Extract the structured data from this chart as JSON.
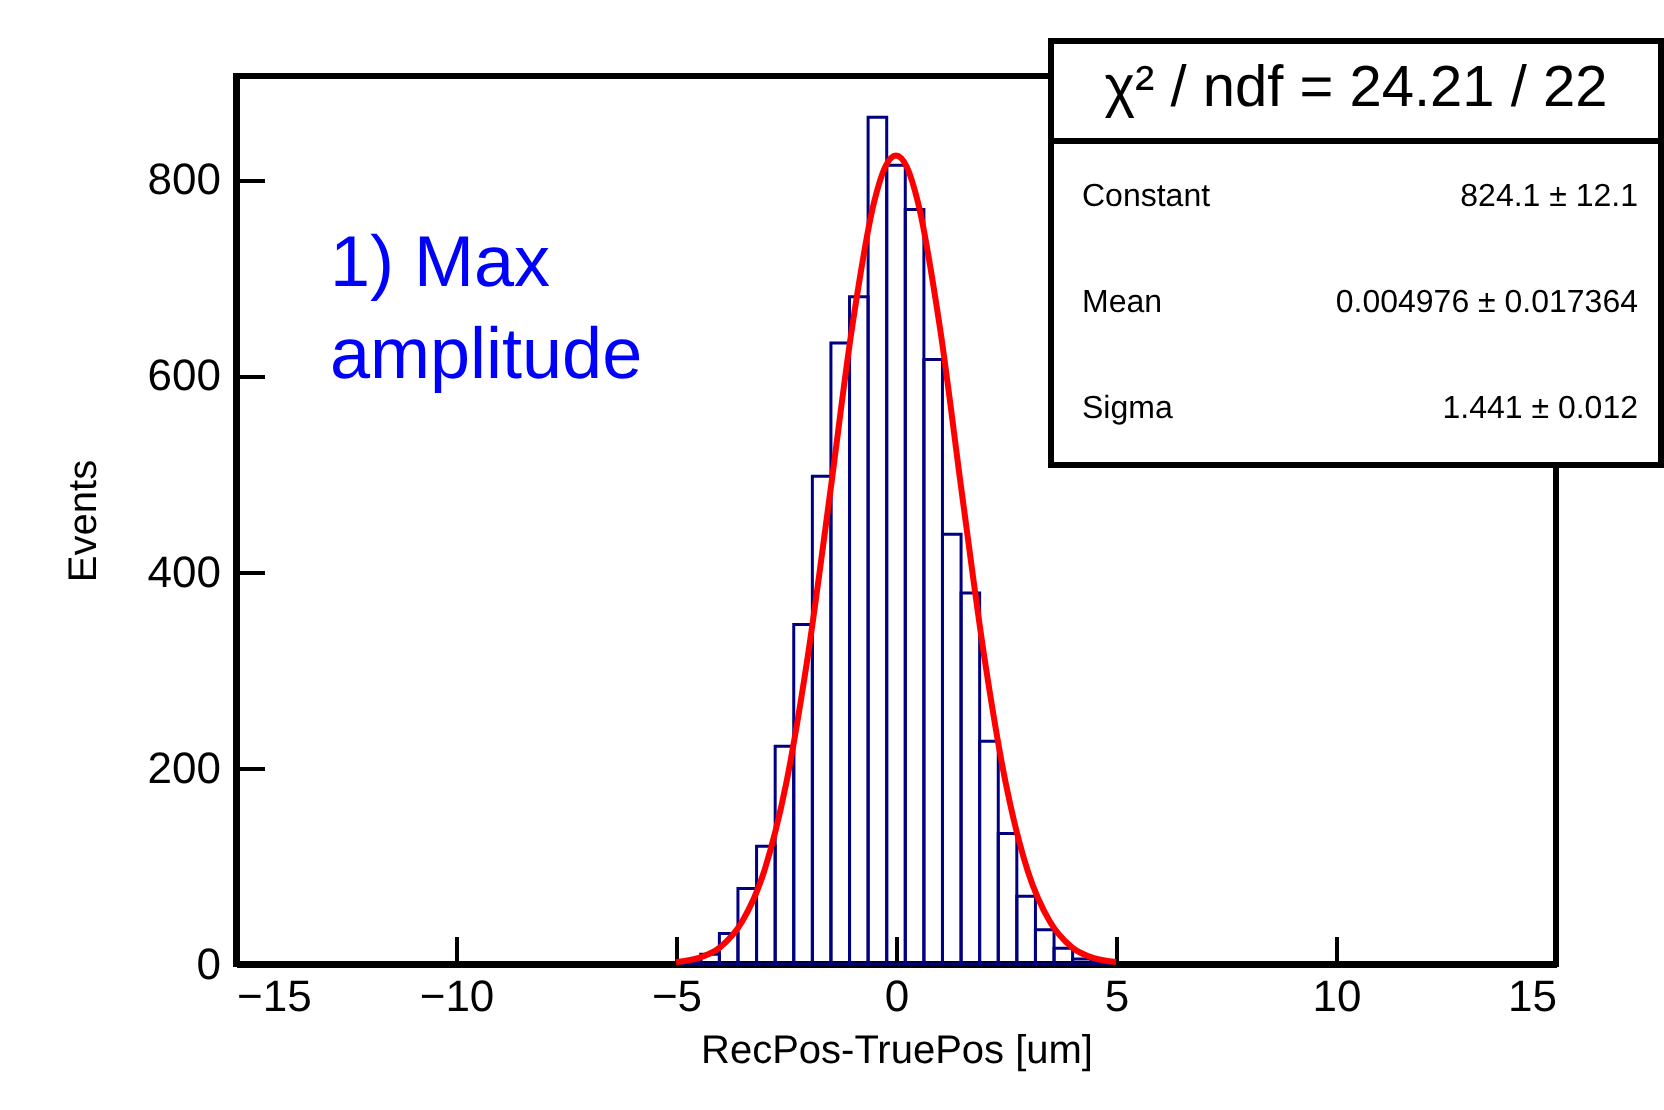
{
  "chart_data": {
    "type": "histogram",
    "xlabel": "RecPos-TruePos [um]",
    "ylabel": "Events",
    "xlim": [
      -15,
      15
    ],
    "ylim": [
      0,
      905
    ],
    "xticks": [
      -15,
      -10,
      -5,
      0,
      5,
      10,
      15
    ],
    "yticks": [
      0,
      200,
      400,
      600,
      800
    ],
    "bins": [
      -4.859,
      -4.437,
      -4.014,
      -3.592,
      -3.169,
      -2.746,
      -2.324,
      -1.901,
      -1.479,
      -1.056,
      -0.634,
      -0.211,
      0.211,
      0.634,
      1.056,
      1.479,
      1.901,
      2.324,
      2.746,
      3.169,
      3.592,
      4.014,
      4.437,
      4.859
    ],
    "series": [
      {
        "type": "histogram",
        "color": "#000080",
        "values": [
          3,
          10,
          31,
          77,
          120,
          222,
          346,
          497,
          633,
          680,
          863,
          814,
          769,
          616,
          438,
          378,
          227,
          133,
          69,
          35,
          16,
          5,
          2
        ]
      },
      {
        "type": "line",
        "color": "#ff0000",
        "x": [
          -5,
          -4.5,
          -4,
          -3.5,
          -3,
          -2.5,
          -2,
          -1.5,
          -1,
          -0.5,
          -0.25,
          0,
          0.25,
          0.5,
          1,
          1.5,
          2,
          2.5,
          3,
          3.5,
          4,
          4.5,
          5
        ],
        "values": [
          2,
          6,
          17,
          43,
          94,
          183,
          315,
          479,
          648,
          776,
          812,
          824,
          812,
          776,
          648,
          479,
          315,
          183,
          94,
          43,
          17,
          6,
          2
        ]
      }
    ],
    "annotations": [
      "1) Max amplitude",
      "χ² / ndf = 24.21 / 22",
      "Constant\t824.1 ± 12.1",
      "Mean\t0.004976 ± 0.017364",
      "Sigma\t1.441 ± 0.012"
    ]
  }
}
